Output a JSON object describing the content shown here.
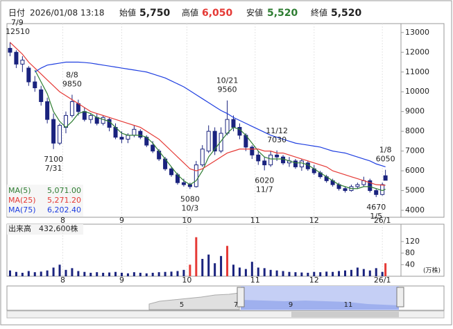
{
  "chart_data": {
    "type": "candlestick",
    "header": {
      "date_label": "日付",
      "date": "2026/01/08 13:18",
      "open_label": "始値",
      "open": "5,750",
      "high_label": "高値",
      "high": "6,050",
      "low_label": "安値",
      "low": "5,520",
      "close_label": "終値",
      "close": "5,520"
    },
    "x": [
      0,
      2,
      4,
      6,
      8,
      10,
      12,
      14,
      16,
      18,
      20,
      22,
      24,
      26,
      28,
      30,
      32,
      34,
      36,
      38,
      40,
      42,
      44,
      46,
      48,
      50,
      52,
      54,
      56,
      58,
      60,
      62,
      64,
      66,
      68,
      70,
      72,
      74,
      76,
      78,
      80,
      82,
      84,
      86,
      88,
      90,
      92,
      94,
      96,
      98,
      100,
      102,
      104,
      106,
      108,
      110,
      112,
      114,
      116,
      118,
      120,
      121
    ],
    "candles": [
      [
        12200,
        12510,
        11800,
        12000
      ],
      [
        12000,
        12100,
        11200,
        11400
      ],
      [
        11400,
        11800,
        11000,
        11600
      ],
      [
        11200,
        11300,
        10300,
        10500
      ],
      [
        10500,
        10800,
        10000,
        10200
      ],
      [
        10100,
        10300,
        9300,
        9500
      ],
      [
        9500,
        9700,
        8400,
        8600
      ],
      [
        8600,
        8900,
        7100,
        7400
      ],
      [
        7400,
        8400,
        7300,
        8300
      ],
      [
        8200,
        9000,
        7900,
        8800
      ],
      [
        8800,
        9850,
        8700,
        9500
      ],
      [
        9400,
        9600,
        8800,
        9000
      ],
      [
        9000,
        9200,
        8500,
        8600
      ],
      [
        8600,
        8900,
        8400,
        8800
      ],
      [
        8700,
        8900,
        8300,
        8400
      ],
      [
        8400,
        8800,
        8300,
        8700
      ],
      [
        8600,
        8700,
        8000,
        8200
      ],
      [
        8200,
        8400,
        7600,
        7700
      ],
      [
        7700,
        8000,
        7400,
        7600
      ],
      [
        7600,
        7900,
        7400,
        7800
      ],
      [
        7800,
        8300,
        7700,
        8100
      ],
      [
        8000,
        8100,
        7600,
        7700
      ],
      [
        7700,
        7800,
        7200,
        7300
      ],
      [
        7300,
        7500,
        6900,
        7000
      ],
      [
        7000,
        7100,
        6500,
        6600
      ],
      [
        6600,
        6700,
        6000,
        6100
      ],
      [
        6100,
        6200,
        5700,
        5800
      ],
      [
        5800,
        5900,
        5300,
        5400
      ],
      [
        5400,
        5600,
        5200,
        5300
      ],
      [
        5300,
        5400,
        5080,
        5200
      ],
      [
        5200,
        6500,
        5150,
        6300
      ],
      [
        6300,
        7300,
        6200,
        7100
      ],
      [
        7000,
        8300,
        6900,
        8000
      ],
      [
        8000,
        8200,
        6800,
        7000
      ],
      [
        7000,
        8200,
        6900,
        7900
      ],
      [
        7900,
        9560,
        7800,
        8600
      ],
      [
        8600,
        8800,
        8000,
        8200
      ],
      [
        8200,
        8400,
        7600,
        7800
      ],
      [
        7800,
        7900,
        7000,
        7200
      ],
      [
        7200,
        7300,
        6600,
        6800
      ],
      [
        6800,
        7000,
        6300,
        6500
      ],
      [
        6500,
        6700,
        6020,
        6300
      ],
      [
        6300,
        7000,
        6200,
        6800
      ],
      [
        6800,
        7030,
        6500,
        6700
      ],
      [
        6700,
        6800,
        6300,
        6400
      ],
      [
        6400,
        6700,
        6200,
        6500
      ],
      [
        6500,
        6600,
        6100,
        6200
      ],
      [
        6200,
        6600,
        6000,
        6500
      ],
      [
        6400,
        6500,
        6000,
        6100
      ],
      [
        6100,
        6300,
        5800,
        5900
      ],
      [
        5900,
        6000,
        5600,
        5700
      ],
      [
        5700,
        5800,
        5400,
        5500
      ],
      [
        5500,
        5600,
        5200,
        5300
      ],
      [
        5300,
        5400,
        5000,
        5100
      ],
      [
        5100,
        5200,
        4900,
        5000
      ],
      [
        5000,
        5300,
        4950,
        5200
      ],
      [
        5200,
        5400,
        5100,
        5300
      ],
      [
        5300,
        5700,
        5200,
        5500
      ],
      [
        5500,
        5600,
        4900,
        5000
      ],
      [
        5000,
        5100,
        4670,
        4800
      ],
      [
        4800,
        5400,
        4750,
        5300
      ],
      [
        5750,
        6050,
        5520,
        5520
      ]
    ],
    "up_color": "#ffffff",
    "down_color": "#1a237e",
    "candle_stroke": "#1a237e",
    "series": [
      {
        "name": "MA(5)",
        "color": "#2e7d32",
        "legend_value": "5,071.00",
        "values": [
          null,
          null,
          null,
          null,
          11100,
          10500,
          9900,
          9000,
          8500,
          8200,
          8500,
          8900,
          9000,
          8900,
          8700,
          8600,
          8500,
          8200,
          7900,
          7800,
          7800,
          7800,
          7700,
          7400,
          7000,
          6600,
          6200,
          5800,
          5500,
          5300,
          5500,
          6000,
          6700,
          7100,
          7500,
          7900,
          8200,
          8100,
          7800,
          7400,
          7000,
          6700,
          6600,
          6600,
          6600,
          6500,
          6400,
          6400,
          6300,
          6100,
          5900,
          5700,
          5500,
          5300,
          5200,
          5100,
          5100,
          5200,
          5200,
          5100,
          5000,
          5071
        ]
      },
      {
        "name": "MA(25)",
        "color": "#e53935",
        "legend_value": "5,271.20",
        "values": [
          12500,
          12200,
          11900,
          11500,
          11200,
          10900,
          10600,
          10300,
          10000,
          9800,
          9600,
          9400,
          9200,
          9000,
          8900,
          8800,
          8700,
          8600,
          8500,
          8400,
          8300,
          8200,
          8000,
          7800,
          7600,
          7300,
          7000,
          6700,
          6400,
          6100,
          6000,
          6100,
          6300,
          6500,
          6700,
          6900,
          7000,
          7100,
          7100,
          7100,
          7100,
          7000,
          7000,
          6900,
          6900,
          6800,
          6700,
          6600,
          6500,
          6400,
          6300,
          6200,
          6000,
          5900,
          5800,
          5700,
          5600,
          5500,
          5400,
          5300,
          5280,
          5271.2
        ]
      },
      {
        "name": "MA(75)",
        "color": "#1e3ee0",
        "legend_value": "6,202.40",
        "values": [
          null,
          null,
          null,
          null,
          11000,
          11200,
          11350,
          11400,
          11450,
          11500,
          11500,
          11500,
          11480,
          11450,
          11400,
          11350,
          11300,
          11250,
          11200,
          11150,
          11100,
          11050,
          11000,
          10900,
          10800,
          10700,
          10550,
          10400,
          10250,
          10050,
          9850,
          9650,
          9450,
          9250,
          9050,
          8900,
          8700,
          8550,
          8400,
          8250,
          8100,
          7950,
          7800,
          7700,
          7600,
          7500,
          7400,
          7350,
          7300,
          7250,
          7200,
          7100,
          7000,
          6950,
          6900,
          6800,
          6700,
          6600,
          6500,
          6350,
          6250,
          6202.4
        ]
      }
    ],
    "xlim": [
      -1,
      126
    ],
    "xticks": [
      {
        "value": 17,
        "label": "8"
      },
      {
        "value": 36,
        "label": "9"
      },
      {
        "value": 57,
        "label": "10"
      },
      {
        "value": 79,
        "label": "11"
      },
      {
        "value": 98,
        "label": "12"
      },
      {
        "value": 120,
        "label": "26/1"
      }
    ],
    "ylim": [
      3650,
      13450
    ],
    "yticks": [
      4000,
      5000,
      6000,
      7000,
      8000,
      9000,
      10000,
      11000,
      12000,
      13000
    ],
    "annotations": [
      {
        "date": "7/9",
        "value": 12510,
        "x": 0,
        "pos": "above"
      },
      {
        "date": "8/8",
        "value": 9850,
        "x": 20,
        "pos": "above"
      },
      {
        "date": "7/31",
        "value": 7100,
        "x": 14,
        "pos": "below"
      },
      {
        "date": "10/21",
        "value": 9560,
        "x": 70,
        "pos": "above"
      },
      {
        "date": "10/3",
        "value": 5080,
        "x": 58,
        "pos": "below"
      },
      {
        "date": "11/12",
        "value": 7030,
        "x": 86,
        "pos": "above"
      },
      {
        "date": "11/7",
        "value": 6020,
        "x": 82,
        "pos": "below"
      },
      {
        "date": "1/8",
        "value": 6050,
        "x": 121,
        "pos": "above"
      },
      {
        "date": "1/5",
        "value": 4670,
        "x": 118,
        "pos": "below"
      }
    ],
    "volume": {
      "label": "出来高",
      "total": "432,600株",
      "unit": "(万株)",
      "values": [
        20,
        15,
        12,
        18,
        14,
        16,
        20,
        30,
        40,
        22,
        28,
        18,
        15,
        12,
        14,
        12,
        13,
        15,
        12,
        10,
        14,
        12,
        10,
        12,
        14,
        15,
        16,
        18,
        22,
        40,
        135,
        60,
        75,
        45,
        70,
        105,
        40,
        30,
        25,
        50,
        30,
        28,
        22,
        20,
        18,
        15,
        14,
        13,
        12,
        15,
        14,
        16,
        15,
        18,
        20,
        22,
        30,
        25,
        20,
        28,
        15,
        45
      ],
      "colors": [
        "#1a237e",
        "#1a237e",
        "#1a237e",
        "#1a237e",
        "#1a237e",
        "#1a237e",
        "#1a237e",
        "#1a237e",
        "#1a237e",
        "#1a237e",
        "#1a237e",
        "#1a237e",
        "#1a237e",
        "#1a237e",
        "#1a237e",
        "#1a237e",
        "#1a237e",
        "#1a237e",
        "#1a237e",
        "#1a237e",
        "#1a237e",
        "#1a237e",
        "#1a237e",
        "#1a237e",
        "#1a237e",
        "#1a237e",
        "#1a237e",
        "#1a237e",
        "#1a237e",
        "#e53935",
        "#e53935",
        "#1a237e",
        "#1a237e",
        "#1a237e",
        "#1a237e",
        "#e53935",
        "#1a237e",
        "#1a237e",
        "#1a237e",
        "#1a237e",
        "#1a237e",
        "#1a237e",
        "#1a237e",
        "#1a237e",
        "#1a237e",
        "#1a237e",
        "#1a237e",
        "#1a237e",
        "#1a237e",
        "#1a237e",
        "#1a237e",
        "#1a237e",
        "#1a237e",
        "#1a237e",
        "#1a237e",
        "#1a237e",
        "#1a237e",
        "#1a237e",
        "#1a237e",
        "#1a237e",
        "#1a237e",
        "#e53935"
      ],
      "ylim": [
        0,
        180
      ],
      "yticks": [
        40,
        80,
        120
      ]
    },
    "navigator": {
      "labels": [
        "5",
        "7",
        "9",
        "11"
      ]
    }
  }
}
